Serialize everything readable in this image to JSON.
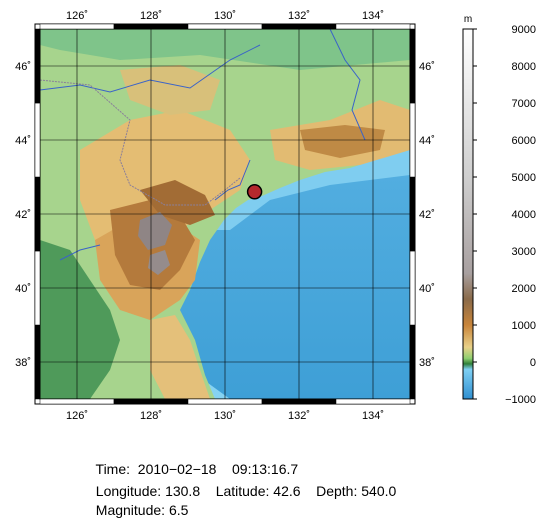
{
  "map": {
    "lon_range": [
      125,
      135
    ],
    "lat_range": [
      37,
      47
    ],
    "lon_ticks": [
      "126˚",
      "128˚",
      "130˚",
      "132˚",
      "134˚"
    ],
    "lat_ticks": [
      "38˚",
      "40˚",
      "42˚",
      "44˚",
      "46˚"
    ],
    "lon_tick_values": [
      126,
      128,
      130,
      132,
      134
    ],
    "lat_tick_values": [
      38,
      40,
      42,
      44,
      46
    ],
    "epicenter": {
      "lon": 130.8,
      "lat": 42.6,
      "color": "#b4282d"
    }
  },
  "colorbar": {
    "unit": "m",
    "range": [
      -1000,
      9000
    ],
    "tick_labels": [
      "9000",
      "8000",
      "7000",
      "6000",
      "5000",
      "4000",
      "3000",
      "2000",
      "1000",
      "0",
      "−1000"
    ],
    "tick_values": [
      9000,
      8000,
      7000,
      6000,
      5000,
      4000,
      3000,
      2000,
      1000,
      0,
      -1000
    ],
    "colors": {
      "deep_sea": "#48a6da",
      "shallow_sea": "#7fd0f4",
      "lowland": "#3f9a55",
      "plain": "#9ccf8a",
      "hills": "#e0b56a",
      "mountain": "#b07a3a",
      "high": "#9a8f8a",
      "peak": "#f4f4f4"
    }
  },
  "info": {
    "time_label": "Time:",
    "time_value": "2010−02−18    09:13:16.7",
    "longitude_label": "Longitude:",
    "longitude_value": "130.8",
    "latitude_label": "Latitude:",
    "latitude_value": "42.6",
    "depth_label": "Depth:",
    "depth_value": "540.0",
    "magnitude_label": "Magnitude:",
    "magnitude_value": "6.5"
  }
}
